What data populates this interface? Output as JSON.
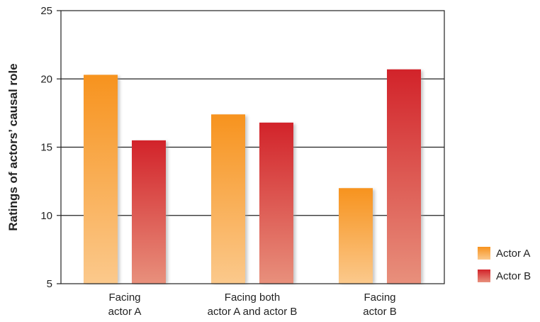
{
  "chart_data": {
    "type": "bar",
    "title": "",
    "xlabel": "",
    "ylabel": "Ratings of actors’ causal role",
    "ylim": [
      5,
      25
    ],
    "yticks": [
      5,
      10,
      15,
      20,
      25
    ],
    "grid": true,
    "legend_position": "right",
    "categories": [
      [
        "Facing",
        "actor A"
      ],
      [
        "Facing both",
        "actor A and actor B"
      ],
      [
        "Facing",
        "actor B"
      ]
    ],
    "series": [
      {
        "name": "Actor A",
        "values": [
          20.3,
          17.4,
          12.0
        ],
        "color_top": "#f7931e",
        "color_bottom": "#fbc98c"
      },
      {
        "name": "Actor B",
        "values": [
          15.5,
          16.8,
          20.7
        ],
        "color_top": "#d2232a",
        "color_bottom": "#e8907c"
      }
    ]
  }
}
